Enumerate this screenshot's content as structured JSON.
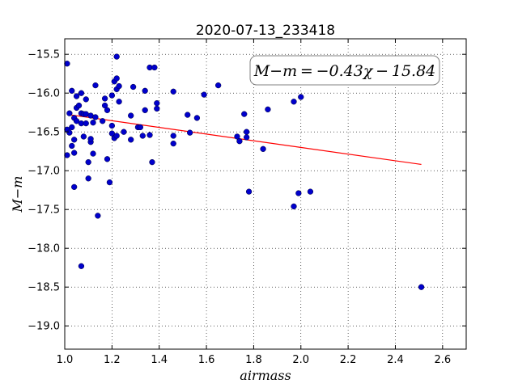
{
  "chart_data": {
    "type": "scatter",
    "title": "2020-07-13_233418",
    "xlabel": "airmass",
    "ylabel": "M−m",
    "xlim": [
      1.0,
      2.7
    ],
    "ylim": [
      -19.3,
      -15.3
    ],
    "y_inverted": true,
    "grid": true,
    "xticks": [
      1.0,
      1.2,
      1.4,
      1.6,
      1.8,
      2.0,
      2.2,
      2.4,
      2.6
    ],
    "xtick_labels": [
      "1.0",
      "1.2",
      "1.4",
      "1.6",
      "1.8",
      "2.0",
      "2.2",
      "2.4",
      "2.6"
    ],
    "yticks": [
      -15.5,
      -16.0,
      -16.5,
      -17.0,
      -17.5,
      -18.0,
      -18.5,
      -19.0
    ],
    "ytick_labels": [
      "−15.5",
      "−16.0",
      "−16.5",
      "−17.0",
      "−17.5",
      "−18.0",
      "−18.5",
      "−19.0"
    ],
    "annotation": "M−m = −0.43χ − 15.84",
    "fit": {
      "slope": -0.43,
      "intercept": -15.84,
      "x_range": [
        1.01,
        2.51
      ],
      "color": "#ff0000"
    },
    "marker_color": "#0000cc",
    "points": [
      [
        1.01,
        -15.62
      ],
      [
        1.01,
        -16.47
      ],
      [
        1.01,
        -16.8
      ],
      [
        1.02,
        -16.26
      ],
      [
        1.02,
        -16.51
      ],
      [
        1.03,
        -15.97
      ],
      [
        1.03,
        -16.44
      ],
      [
        1.03,
        -16.68
      ],
      [
        1.04,
        -16.32
      ],
      [
        1.04,
        -16.77
      ],
      [
        1.04,
        -16.6
      ],
      [
        1.04,
        -17.21
      ],
      [
        1.05,
        -16.04
      ],
      [
        1.05,
        -16.19
      ],
      [
        1.05,
        -16.36
      ],
      [
        1.06,
        -16.16
      ],
      [
        1.07,
        -16.0
      ],
      [
        1.07,
        -16.26
      ],
      [
        1.07,
        -16.39
      ],
      [
        1.07,
        -18.23
      ],
      [
        1.08,
        -16.27
      ],
      [
        1.08,
        -16.56
      ],
      [
        1.09,
        -16.08
      ],
      [
        1.09,
        -16.39
      ],
      [
        1.09,
        -16.27
      ],
      [
        1.1,
        -16.89
      ],
      [
        1.1,
        -17.1
      ],
      [
        1.11,
        -16.29
      ],
      [
        1.11,
        -16.63
      ],
      [
        1.11,
        -16.59
      ],
      [
        1.12,
        -16.78
      ],
      [
        1.12,
        -16.38
      ],
      [
        1.13,
        -15.9
      ],
      [
        1.13,
        -16.31
      ],
      [
        1.14,
        -17.58
      ],
      [
        1.16,
        -16.36
      ],
      [
        1.17,
        -16.07
      ],
      [
        1.17,
        -16.16
      ],
      [
        1.18,
        -16.22
      ],
      [
        1.18,
        -16.85
      ],
      [
        1.19,
        -17.15
      ],
      [
        1.2,
        -16.03
      ],
      [
        1.2,
        -16.42
      ],
      [
        1.2,
        -16.52
      ],
      [
        1.21,
        -15.85
      ],
      [
        1.21,
        -16.58
      ],
      [
        1.22,
        -15.81
      ],
      [
        1.22,
        -15.53
      ],
      [
        1.22,
        -15.95
      ],
      [
        1.22,
        -16.55
      ],
      [
        1.23,
        -16.11
      ],
      [
        1.23,
        -15.91
      ],
      [
        1.25,
        -16.5
      ],
      [
        1.28,
        -16.29
      ],
      [
        1.28,
        -16.6
      ],
      [
        1.29,
        -15.92
      ],
      [
        1.31,
        -16.44
      ],
      [
        1.32,
        -16.44
      ],
      [
        1.33,
        -16.55
      ],
      [
        1.34,
        -16.22
      ],
      [
        1.34,
        -15.97
      ],
      [
        1.36,
        -15.67
      ],
      [
        1.36,
        -16.54
      ],
      [
        1.37,
        -16.89
      ],
      [
        1.38,
        -15.67
      ],
      [
        1.39,
        -16.2
      ],
      [
        1.39,
        -16.13
      ],
      [
        1.46,
        -15.98
      ],
      [
        1.46,
        -16.55
      ],
      [
        1.46,
        -16.65
      ],
      [
        1.52,
        -16.28
      ],
      [
        1.53,
        -16.51
      ],
      [
        1.56,
        -16.32
      ],
      [
        1.59,
        -16.02
      ],
      [
        1.65,
        -15.9
      ],
      [
        1.73,
        -16.56
      ],
      [
        1.74,
        -16.62
      ],
      [
        1.76,
        -16.27
      ],
      [
        1.77,
        -16.5
      ],
      [
        1.77,
        -16.57
      ],
      [
        1.78,
        -17.27
      ],
      [
        1.84,
        -16.72
      ],
      [
        1.86,
        -16.21
      ],
      [
        1.97,
        -16.11
      ],
      [
        1.97,
        -17.46
      ],
      [
        1.99,
        -17.29
      ],
      [
        2.0,
        -16.05
      ],
      [
        2.04,
        -17.27
      ],
      [
        2.51,
        -18.5
      ]
    ]
  }
}
